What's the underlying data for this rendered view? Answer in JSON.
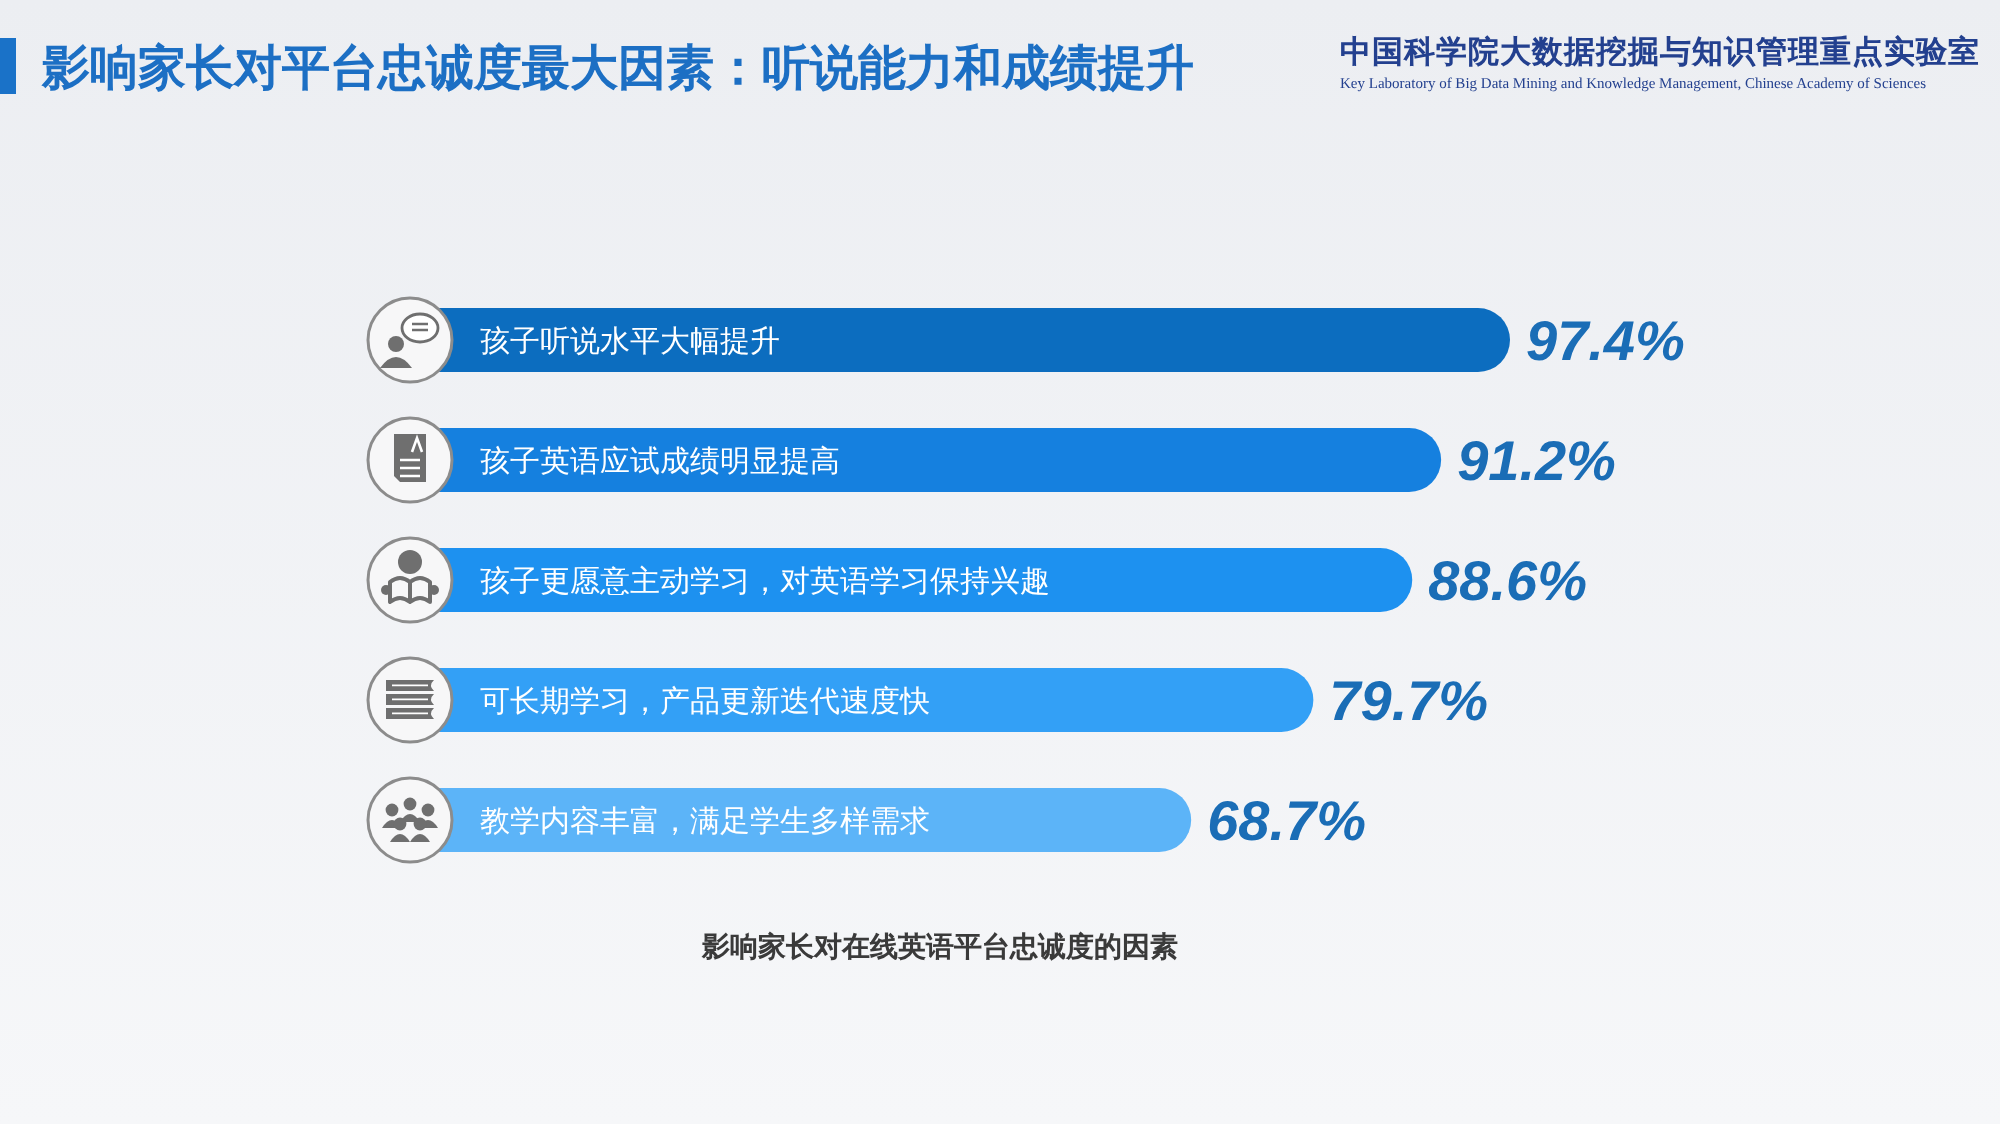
{
  "chart_data": {
    "type": "bar",
    "orientation": "horizontal",
    "title": "影响家长对平台忠诚度最大因素：听说能力和成绩提升",
    "categories": [
      "孩子听说水平大幅提升",
      "孩子英语应试成绩明显提高",
      "孩子更愿意主动学习，对英语学习保持兴趣",
      "可长期学习，产品更新迭代速度快",
      "教学内容丰富，满足学生多样需求"
    ],
    "values": [
      97.4,
      91.2,
      88.6,
      79.7,
      68.7
    ],
    "colors": [
      "#0c6dbf",
      "#1580df",
      "#1d91f0",
      "#33a0f6",
      "#5cb4f8"
    ],
    "value_labels": [
      "97.4%",
      "91.2%",
      "88.6%",
      "79.7%",
      "68.7%"
    ],
    "annotations": [
      "中国科学院大数据挖掘与知识管理重点实验室",
      "Key Laboratory of Big Data Mining and Knowledge Management, Chinese Academy of Sciences",
      "影响家长对在线英语平台忠诚度的因素"
    ]
  }
}
